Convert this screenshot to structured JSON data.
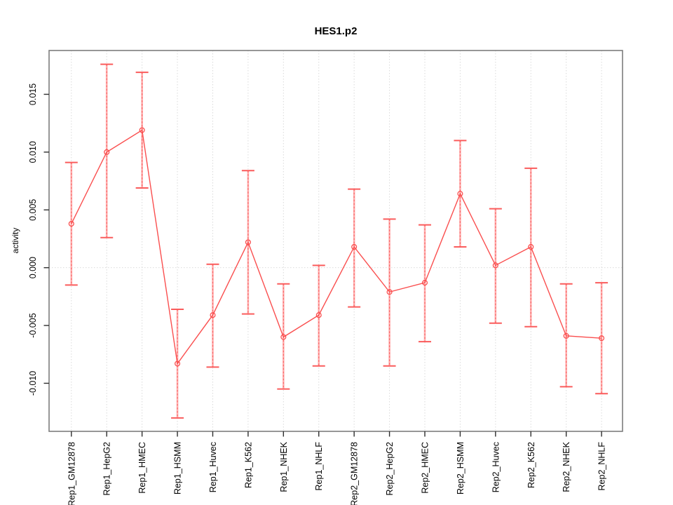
{
  "chart_data": {
    "type": "line",
    "title": "HES1.p2",
    "ylabel": "activity",
    "xlabel": "",
    "legend_position": "none",
    "grid": "vertical dotted gridline per category; horizontal dotted line at y=0",
    "categories": [
      "Rep1_GM12878",
      "Rep1_HepG2",
      "Rep1_HMEC",
      "Rep1_HSMM",
      "Rep1_Huvec",
      "Rep1_K562",
      "Rep1_NHEK",
      "Rep1_NHLF",
      "Rep2_GM12878",
      "Rep2_HepG2",
      "Rep2_HMEC",
      "Rep2_HSMM",
      "Rep2_Huvec",
      "Rep2_K562",
      "Rep2_NHEK",
      "Rep2_NHLF"
    ],
    "series": [
      {
        "name": "activity",
        "values": [
          0.0038,
          0.01,
          0.0119,
          -0.0083,
          -0.0041,
          0.0022,
          -0.006,
          -0.0041,
          0.0018,
          -0.0021,
          -0.0013,
          0.0064,
          0.0002,
          0.0018,
          -0.0059,
          -0.0061
        ],
        "error_high": [
          0.0091,
          0.0176,
          0.0169,
          -0.0036,
          0.0003,
          0.0084,
          -0.0014,
          0.0002,
          0.0068,
          0.0042,
          0.0037,
          0.011,
          0.0051,
          0.0086,
          -0.0014,
          -0.0013
        ],
        "error_low": [
          -0.0015,
          0.0026,
          0.0069,
          -0.013,
          -0.0086,
          -0.004,
          -0.0105,
          -0.0085,
          -0.0034,
          -0.0085,
          -0.0064,
          0.0018,
          -0.0048,
          -0.0051,
          -0.0103,
          -0.0109
        ]
      }
    ],
    "yticks": [
      "-0.010",
      "-0.005",
      "0.000",
      "0.005",
      "0.010",
      "0.015"
    ],
    "ytick_values": [
      -0.01,
      -0.005,
      0.0,
      0.005,
      0.01,
      0.015
    ],
    "ylim": [
      -0.01416,
      0.01879
    ],
    "marker": "open-circle",
    "colors": {
      "series_line": "#fa4f4f",
      "marker": "#fa4f4f",
      "error_bar_fill": "#ffb0b0",
      "error_bar_dash": "#fa6a6a",
      "error_bar_cap": "#fa5c5c",
      "grid_line": "#dadada",
      "plot_border": "#7d7d7d",
      "tick": "#2e2e2e",
      "text": "#000000",
      "background": "#ffffff"
    }
  }
}
